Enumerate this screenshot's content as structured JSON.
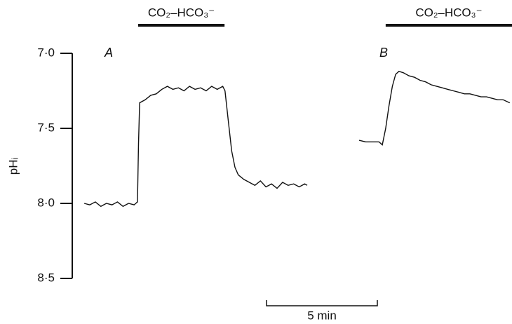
{
  "chart_data": {
    "type": "line",
    "y_label": "pHᵢ",
    "ylim": [
      7.0,
      8.5
    ],
    "y_inverted": true,
    "yticks": [
      {
        "value": 7.0,
        "label": "7·0"
      },
      {
        "value": 7.5,
        "label": "7·5"
      },
      {
        "value": 8.0,
        "label": "8·0"
      },
      {
        "value": 8.5,
        "label": "8·5"
      }
    ],
    "xlim": [
      0,
      20
    ],
    "periods": [
      {
        "label": "CO₂–HCO₃⁻",
        "start": 3.13,
        "end": 7.03
      },
      {
        "label": "CO₂–HCO₃⁻",
        "start": 14.3,
        "end": 20
      }
    ],
    "scale_bar": {
      "label": "5 min",
      "length": 5
    },
    "series": [
      {
        "name": "A",
        "color": "#111111",
        "x": [
          0.7,
          0.95,
          1.2,
          1.45,
          1.7,
          1.95,
          2.2,
          2.45,
          2.7,
          2.95,
          3.1,
          3.15,
          3.2,
          3.45,
          3.7,
          3.95,
          4.2,
          4.45,
          4.7,
          4.95,
          5.2,
          5.45,
          5.7,
          5.95,
          6.2,
          6.45,
          6.7,
          6.95,
          7.05,
          7.2,
          7.35,
          7.5,
          7.65,
          7.9,
          8.15,
          8.4,
          8.65,
          8.9,
          9.15,
          9.4,
          9.65,
          9.9,
          10.15,
          10.4,
          10.65,
          10.76
        ],
        "values": [
          8.0,
          8.01,
          7.99,
          8.02,
          8.0,
          8.01,
          7.99,
          8.02,
          8.0,
          8.01,
          7.99,
          7.6,
          7.33,
          7.31,
          7.28,
          7.27,
          7.24,
          7.22,
          7.24,
          7.23,
          7.25,
          7.22,
          7.24,
          7.23,
          7.25,
          7.22,
          7.24,
          7.22,
          7.25,
          7.45,
          7.65,
          7.76,
          7.81,
          7.84,
          7.86,
          7.88,
          7.85,
          7.89,
          7.87,
          7.9,
          7.86,
          7.88,
          7.87,
          7.89,
          7.87,
          7.88
        ]
      },
      {
        "name": "B",
        "color": "#111111",
        "x": [
          13.1,
          13.4,
          13.7,
          14.0,
          14.15,
          14.3,
          14.45,
          14.6,
          14.75,
          14.9,
          15.1,
          15.35,
          15.6,
          15.85,
          16.1,
          16.35,
          16.6,
          16.85,
          17.1,
          17.35,
          17.6,
          17.85,
          18.1,
          18.35,
          18.6,
          18.85,
          19.1,
          19.35,
          19.6,
          19.9
        ],
        "values": [
          7.58,
          7.59,
          7.59,
          7.59,
          7.61,
          7.5,
          7.35,
          7.22,
          7.14,
          7.12,
          7.13,
          7.15,
          7.16,
          7.18,
          7.19,
          7.21,
          7.22,
          7.23,
          7.24,
          7.25,
          7.26,
          7.27,
          7.27,
          7.28,
          7.29,
          7.29,
          7.3,
          7.31,
          7.31,
          7.33
        ]
      }
    ]
  }
}
